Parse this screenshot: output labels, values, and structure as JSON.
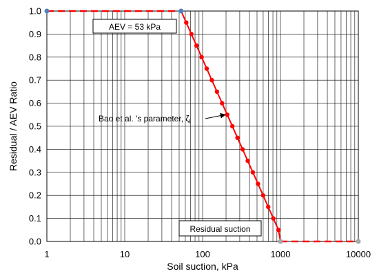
{
  "chart_data": {
    "type": "line",
    "title": "",
    "xlabel": "Soil suction, kPa",
    "ylabel": "Residual / AEV Ratio",
    "xscale": "log",
    "xlim": [
      1,
      10000
    ],
    "ylim": [
      0,
      1
    ],
    "grid": true,
    "legend": "none",
    "x_ticks": [
      "1",
      "10",
      "100",
      "1000",
      "10000"
    ],
    "y_ticks": [
      "0.0",
      "0.1",
      "0.2",
      "0.3",
      "0.4",
      "0.5",
      "0.6",
      "0.7",
      "0.8",
      "0.9",
      "1.0"
    ],
    "series": [
      {
        "role": "dashed-segments",
        "color": "#ff0000",
        "style": "dashed",
        "segments": [
          [
            [
              1,
              1.0
            ],
            [
              53,
              1.0
            ]
          ],
          [
            [
              1000,
              0.0
            ],
            [
              10000,
              0.0
            ]
          ]
        ]
      },
      {
        "role": "solid-curve",
        "color": "#ff0000",
        "marker": "circle",
        "points": [
          [
            53,
            1.0
          ],
          [
            61.7,
            0.95
          ],
          [
            71.8,
            0.9
          ],
          [
            83.5,
            0.85
          ],
          [
            97.2,
            0.8
          ],
          [
            113,
            0.75
          ],
          [
            131.5,
            0.7
          ],
          [
            153,
            0.65
          ],
          [
            178.1,
            0.6
          ],
          [
            207.2,
            0.55
          ],
          [
            241.1,
            0.5
          ],
          [
            280.5,
            0.45
          ],
          [
            326.4,
            0.4
          ],
          [
            379.8,
            0.35
          ],
          [
            441.9,
            0.3
          ],
          [
            514.2,
            0.25
          ],
          [
            598.3,
            0.2
          ],
          [
            696.2,
            0.15
          ],
          [
            810.1,
            0.1
          ],
          [
            942.6,
            0.05
          ],
          [
            1000,
            0.0
          ]
        ]
      },
      {
        "role": "endpoints",
        "points": [
          {
            "x": 1,
            "y": 1.0,
            "color": "#4f81bd"
          },
          {
            "x": 53,
            "y": 1.0,
            "color": "#4f81bd"
          },
          {
            "x": 1000,
            "y": 0.0,
            "color": "#a6a6a6"
          },
          {
            "x": 10000,
            "y": 0.0,
            "color": "#a6a6a6"
          }
        ]
      }
    ],
    "annotations": [
      {
        "text": "AEV = 53 kPa",
        "boxed": true
      },
      {
        "text": "Bao et al. 's parameter, ζ",
        "subscript": "l",
        "arrow_to": [
          207.2,
          0.55
        ]
      },
      {
        "text": "Residual suction",
        "boxed": true
      }
    ]
  }
}
